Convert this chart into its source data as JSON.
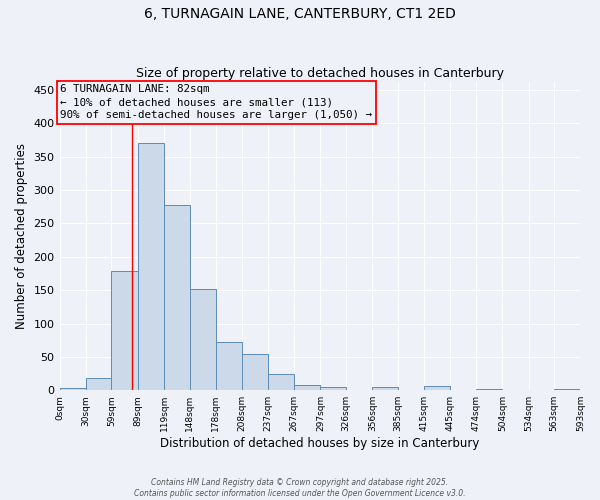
{
  "title1": "6, TURNAGAIN LANE, CANTERBURY, CT1 2ED",
  "title2": "Size of property relative to detached houses in Canterbury",
  "xlabel": "Distribution of detached houses by size in Canterbury",
  "ylabel": "Number of detached properties",
  "bar_color": "#ccd9e8",
  "bar_edge_color": "#5b8db8",
  "bin_edges": [
    0,
    30,
    59,
    89,
    119,
    148,
    178,
    208,
    237,
    267,
    297,
    326,
    356,
    385,
    415,
    445,
    474,
    504,
    534,
    563,
    593
  ],
  "bin_labels": [
    "0sqm",
    "30sqm",
    "59sqm",
    "89sqm",
    "119sqm",
    "148sqm",
    "178sqm",
    "208sqm",
    "237sqm",
    "267sqm",
    "297sqm",
    "326sqm",
    "356sqm",
    "385sqm",
    "415sqm",
    "445sqm",
    "474sqm",
    "504sqm",
    "534sqm",
    "563sqm",
    "593sqm"
  ],
  "bar_heights": [
    3,
    18,
    178,
    370,
    278,
    152,
    73,
    55,
    25,
    8,
    5,
    0,
    5,
    0,
    6,
    0,
    2,
    0,
    0,
    2
  ],
  "ylim": [
    0,
    462
  ],
  "yticks": [
    0,
    50,
    100,
    150,
    200,
    250,
    300,
    350,
    400,
    450
  ],
  "red_line_x": 82,
  "annotation_text_line1": "6 TURNAGAIN LANE: 82sqm",
  "annotation_text_line2": "← 10% of detached houses are smaller (113)",
  "annotation_text_line3": "90% of semi-detached houses are larger (1,050) →",
  "footer_line1": "Contains HM Land Registry data © Crown copyright and database right 2025.",
  "footer_line2": "Contains public sector information licensed under the Open Government Licence v3.0.",
  "background_color": "#eef2f8",
  "grid_color": "#ffffff"
}
